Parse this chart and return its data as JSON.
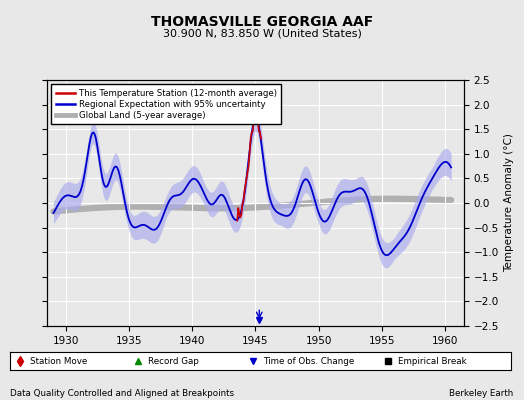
{
  "title": "THOMASVILLE GEORGIA AAF",
  "subtitle": "30.900 N, 83.850 W (United States)",
  "xlabel_left": "Data Quality Controlled and Aligned at Breakpoints",
  "xlabel_right": "Berkeley Earth",
  "ylabel": "Temperature Anomaly (°C)",
  "xlim": [
    1928.5,
    1961.5
  ],
  "ylim": [
    -2.5,
    2.5
  ],
  "yticks": [
    -2.5,
    -2,
    -1.5,
    -1,
    -0.5,
    0,
    0.5,
    1,
    1.5,
    2,
    2.5
  ],
  "xticks": [
    1930,
    1935,
    1940,
    1945,
    1950,
    1955,
    1960
  ],
  "bg_color": "#e8e8e8",
  "legend_bg": "#ffffff",
  "station_color": "#cc0000",
  "regional_color": "#0000cc",
  "regional_fill": "#aaaaee",
  "global_color": "#b0b0b0",
  "grid_color": "#ffffff",
  "station_move_color": "#cc0000",
  "record_gap_color": "#008800",
  "obs_change_color": "#0000cc",
  "empirical_break_color": "#000000"
}
